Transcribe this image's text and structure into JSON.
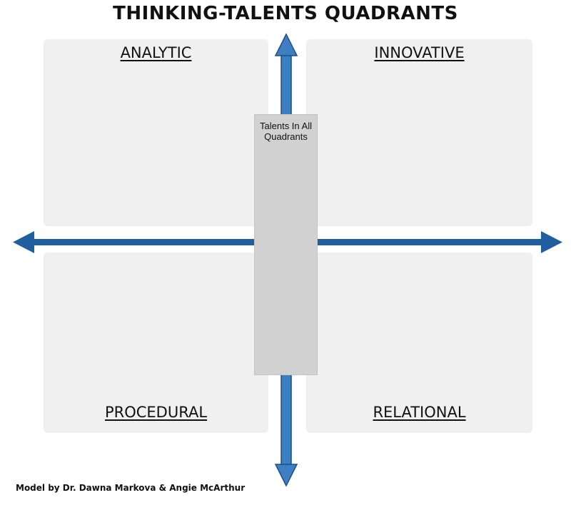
{
  "title": "THINKING-TALENTS QUADRANTS",
  "quadrants": {
    "top_left": "ANALYTIC",
    "top_right": "INNOVATIVE",
    "bottom_left": "PROCEDURAL",
    "bottom_right": "RELATIONAL"
  },
  "center_label": "Talents In All Quadrants",
  "credit": "Model by Dr. Dawna Markova & Angie McArthur",
  "colors": {
    "arrow": "#3d7fc1",
    "arrow_outline": "#1f4f86",
    "quadrant_bg": "#f0f0f0",
    "center_bg": "#d1d1d1"
  }
}
